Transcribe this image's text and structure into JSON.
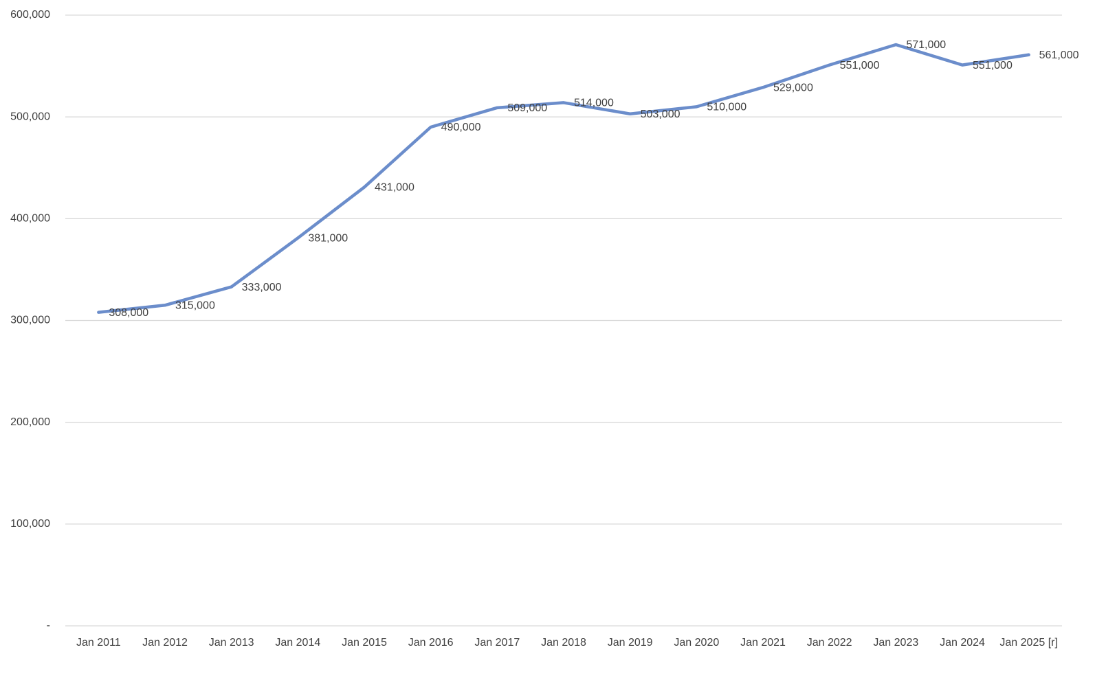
{
  "chart_data": {
    "type": "line",
    "categories": [
      "Jan 2011",
      "Jan 2012",
      "Jan 2013",
      "Jan 2014",
      "Jan 2015",
      "Jan 2016",
      "Jan 2017",
      "Jan 2018",
      "Jan 2019",
      "Jan 2020",
      "Jan 2021",
      "Jan 2022",
      "Jan 2023",
      "Jan 2024",
      "Jan 2025 [r]"
    ],
    "values": [
      308000,
      315000,
      333000,
      381000,
      431000,
      490000,
      509000,
      514000,
      503000,
      510000,
      529000,
      551000,
      571000,
      551000,
      561000
    ],
    "value_labels": [
      "308,000",
      "315,000",
      "333,000",
      "381,000",
      "431,000",
      "490,000",
      "509,000",
      "514,000",
      "503,000",
      "510,000",
      "529,000",
      "551,000",
      "571,000",
      "551,000",
      "561,000"
    ],
    "color": "#6b8dcb",
    "ylim": [
      0,
      600000
    ],
    "yticks": [
      {
        "value": 0,
        "label": "-"
      },
      {
        "value": 100000,
        "label": "100,000"
      },
      {
        "value": 200000,
        "label": "200,000"
      },
      {
        "value": 300000,
        "label": "300,000"
      },
      {
        "value": 400000,
        "label": "400,000"
      },
      {
        "value": 500000,
        "label": "500,000"
      },
      {
        "value": 600000,
        "label": "600,000"
      }
    ],
    "grid": true
  }
}
